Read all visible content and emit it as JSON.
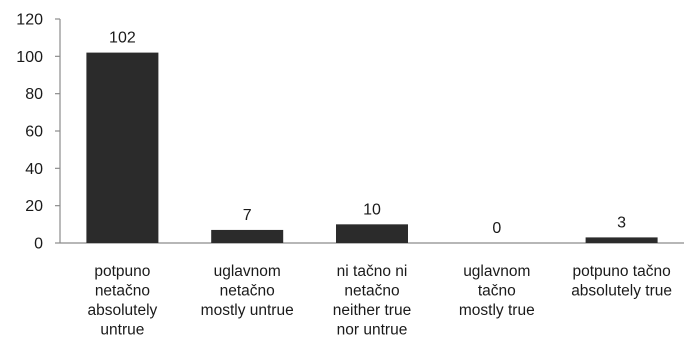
{
  "chart_data": {
    "type": "bar",
    "categories": [
      [
        "potpuno",
        "netačno",
        "absolutely",
        "untrue"
      ],
      [
        "uglavnom",
        "netačno",
        "mostly untrue"
      ],
      [
        "ni tačno ni",
        "netačno",
        "neither true",
        "nor untrue"
      ],
      [
        "uglavnom",
        "tačno",
        "mostly true"
      ],
      [
        "potpuno tačno",
        "absolutely true"
      ]
    ],
    "values": [
      102,
      7,
      10,
      0,
      3
    ],
    "data_labels": [
      "102",
      "7",
      "10",
      "0",
      "3"
    ],
    "y_ticks": [
      0,
      20,
      40,
      60,
      80,
      100,
      120
    ],
    "ylim": [
      0,
      120
    ],
    "grid": false,
    "legend": "none",
    "bar_color": "#2b2b2b",
    "axis_color": "#8c8c8c",
    "title": "",
    "xlabel": "",
    "ylabel": ""
  }
}
